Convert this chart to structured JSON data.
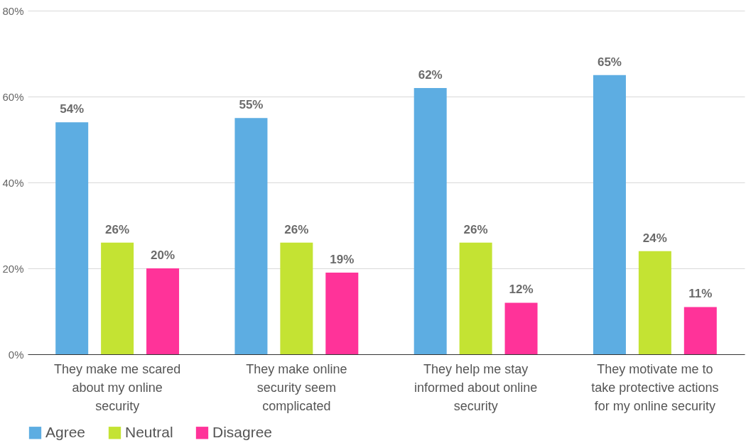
{
  "chart_data": {
    "type": "bar",
    "categories": [
      "They make me scared about my online security",
      "They make online security seem complicated",
      "They help me stay informed about online security",
      "They motivate me to take protective actions for my online security"
    ],
    "series": [
      {
        "name": "Agree",
        "color": "#5dade2",
        "values": [
          54,
          55,
          62,
          65
        ],
        "value_labels": [
          "54%",
          "55%",
          "62%",
          "65%"
        ]
      },
      {
        "name": "Neutral",
        "color": "#c4e333",
        "values": [
          26,
          26,
          26,
          24
        ],
        "value_labels": [
          "26%",
          "26%",
          "26%",
          "24%"
        ]
      },
      {
        "name": "Disagree",
        "color": "#ff3399",
        "values": [
          20,
          19,
          12,
          11
        ],
        "value_labels": [
          "20%",
          "19%",
          "12%",
          "11%"
        ]
      }
    ],
    "ylim": [
      0,
      80
    ],
    "yticks": [
      {
        "value": 0,
        "label": "0%"
      },
      {
        "value": 20,
        "label": "20%"
      },
      {
        "value": 40,
        "label": "40%"
      },
      {
        "value": 60,
        "label": "60%"
      },
      {
        "value": 80,
        "label": "80%"
      }
    ],
    "grid": "y",
    "legend": "bottom"
  }
}
